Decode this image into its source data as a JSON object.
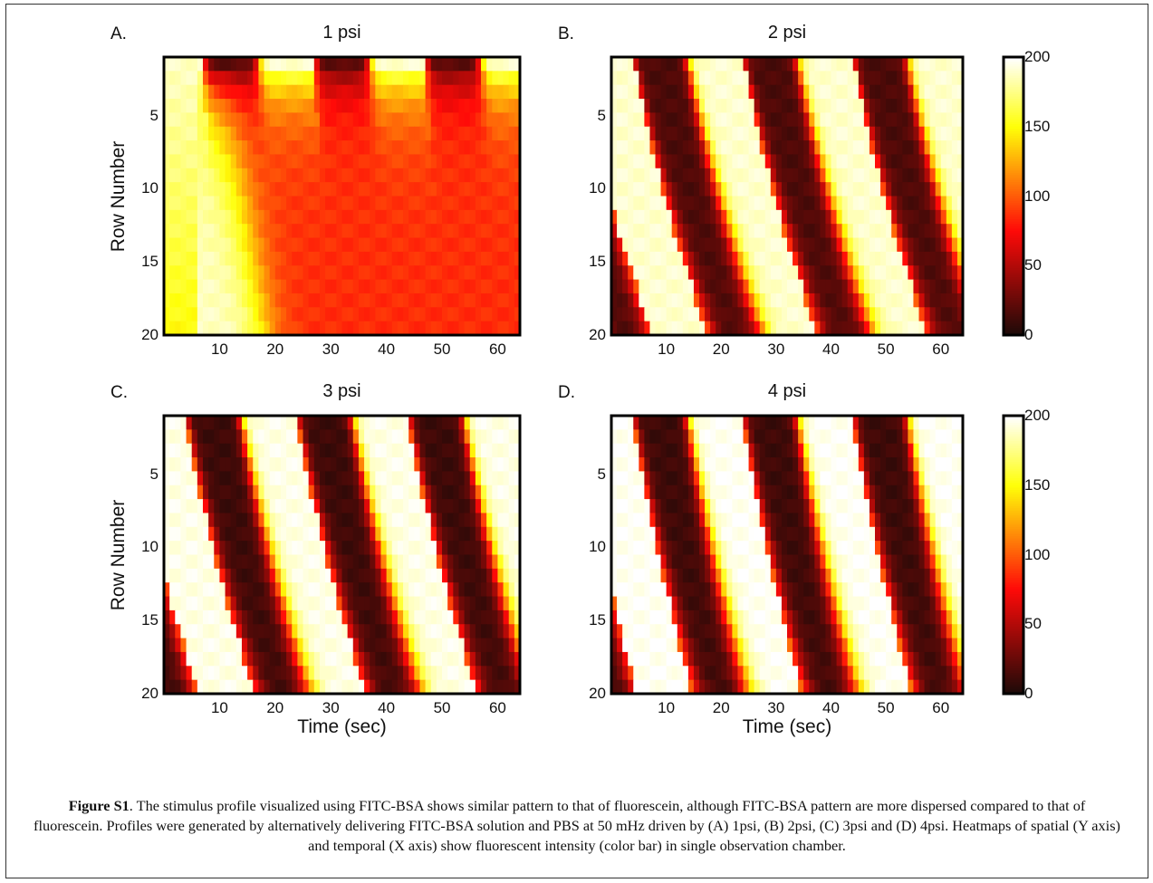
{
  "caption": {
    "label": "Figure S1",
    "text": ". The stimulus profile visualized using FITC-BSA shows similar pattern to that of fluorescein, although FITC-BSA pattern are more dispersed compared to that of fluorescein. Profiles were generated by alternatively delivering FITC-BSA solution and PBS at 50 mHz driven by (A) 1psi, (B) 2psi, (C) 3psi and (D) 4psi. Heatmaps of spatial (Y axis) and temporal (X axis) show fluorescent intensity (color bar) in single observation chamber."
  },
  "colorbar": {
    "colormap": "hot",
    "range": [
      0,
      200
    ],
    "ticks": [
      "0",
      "50",
      "100",
      "150",
      "200"
    ]
  },
  "chart_data": [
    {
      "type": "heatmap",
      "letter": "A.",
      "title": "1 psi",
      "ylabel": "Row Number",
      "xlabel": "",
      "xlim": [
        0,
        64
      ],
      "ylim": [
        1,
        20
      ],
      "yreversed": true,
      "xticks": [
        "10",
        "20",
        "30",
        "40",
        "50",
        "60"
      ],
      "yticks": [
        "5",
        "10",
        "15",
        "20"
      ],
      "period_sec": 20,
      "first_dark_onset_sec": 7,
      "delay_per_row_sec": 0.15,
      "pulse_decay_rows": 4.5,
      "steady_background": 85,
      "high_value": 190,
      "low_value": 20
    },
    {
      "type": "heatmap",
      "letter": "B.",
      "title": "2 psi",
      "ylabel": "",
      "xlabel": "",
      "xlim": [
        0,
        64
      ],
      "ylim": [
        1,
        20
      ],
      "yreversed": true,
      "xticks": [
        "10",
        "20",
        "30",
        "40",
        "50",
        "60"
      ],
      "yticks": [
        "5",
        "10",
        "15",
        "20"
      ],
      "period_sec": 20,
      "first_dark_onset_sec": 4,
      "delay_per_row_sec": 0.5,
      "high_value": 190,
      "low_value": 15
    },
    {
      "type": "heatmap",
      "letter": "C.",
      "title": "3 psi",
      "ylabel": "Row Number",
      "xlabel": "Time (sec)",
      "xlim": [
        0,
        64
      ],
      "ylim": [
        1,
        20
      ],
      "yreversed": true,
      "xticks": [
        "10",
        "20",
        "30",
        "40",
        "50",
        "60"
      ],
      "yticks": [
        "5",
        "10",
        "15",
        "20"
      ],
      "period_sec": 20,
      "first_dark_onset_sec": 4,
      "delay_per_row_sec": 0.45,
      "high_value": 195,
      "low_value": 10
    },
    {
      "type": "heatmap",
      "letter": "D.",
      "title": "4 psi",
      "ylabel": "",
      "xlabel": "Time (sec)",
      "xlim": [
        0,
        64
      ],
      "ylim": [
        1,
        20
      ],
      "yreversed": true,
      "xticks": [
        "10",
        "20",
        "30",
        "40",
        "50",
        "60"
      ],
      "yticks": [
        "5",
        "10",
        "15",
        "20"
      ],
      "period_sec": 20,
      "first_dark_onset_sec": 4,
      "delay_per_row_sec": 0.4,
      "high_value": 198,
      "low_value": 10
    }
  ]
}
